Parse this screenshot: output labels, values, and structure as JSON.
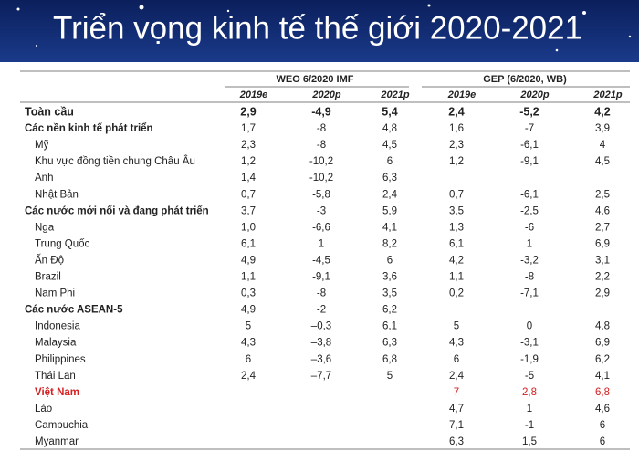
{
  "header": {
    "title": "Triển vọng kinh tế thế giới 2020-2021"
  },
  "table": {
    "groups": [
      "WEO 6/2020 IMF",
      "GEP (6/2020, WB)"
    ],
    "years": [
      "2019e",
      "2020p",
      "2021p",
      "2019e",
      "2020p",
      "2021p"
    ],
    "rows": [
      {
        "label": "Toàn cầu",
        "bold": true,
        "strong": true,
        "cells": [
          "2,9",
          "-4,9",
          "5,4",
          "2,4",
          "-5,2",
          "4,2"
        ]
      },
      {
        "label": "Các nền kinh tế phát triển",
        "bold": true,
        "cells": [
          "1,7",
          "-8",
          "4,8",
          "1,6",
          "-7",
          "3,9"
        ]
      },
      {
        "label": "Mỹ",
        "indent": true,
        "cells": [
          "2,3",
          "-8",
          "4,5",
          "2,3",
          "-6,1",
          "4"
        ]
      },
      {
        "label": "Khu vực đồng tiền chung Châu Âu",
        "indent": true,
        "cells": [
          "1,2",
          "-10,2",
          "6",
          "1,2",
          "-9,1",
          "4,5"
        ]
      },
      {
        "label": "Anh",
        "indent": true,
        "cells": [
          "1,4",
          "-10,2",
          "6,3",
          null,
          null,
          null
        ]
      },
      {
        "label": "Nhật Bản",
        "indent": true,
        "cells": [
          "0,7",
          "-5,8",
          "2,4",
          "0,7",
          "-6,1",
          "2,5"
        ]
      },
      {
        "label": "Các nước mới nổi và đang phát triển",
        "bold": true,
        "cells": [
          "3,7",
          "-3",
          "5,9",
          "3,5",
          "-2,5",
          "4,6"
        ]
      },
      {
        "label": "Nga",
        "indent": true,
        "cells": [
          "1,0",
          "-6,6",
          "4,1",
          "1,3",
          "-6",
          "2,7"
        ]
      },
      {
        "label": "Trung Quốc",
        "indent": true,
        "cells": [
          "6,1",
          "1",
          "8,2",
          "6,1",
          "1",
          "6,9"
        ]
      },
      {
        "label": "Ấn Độ",
        "indent": true,
        "cells": [
          "4,9",
          "-4,5",
          "6",
          "4,2",
          "-3,2",
          "3,1"
        ]
      },
      {
        "label": "Brazil",
        "indent": true,
        "cells": [
          "1,1",
          "-9,1",
          "3,6",
          "1,1",
          "-8",
          "2,2"
        ]
      },
      {
        "label": "Nam Phi",
        "indent": true,
        "cells": [
          "0,3",
          "-8",
          "3,5",
          "0,2",
          "-7,1",
          "2,9"
        ]
      },
      {
        "label": "Các nước ASEAN-5",
        "bold": true,
        "cells": [
          "4,9",
          "-2",
          "6,2",
          null,
          null,
          null
        ]
      },
      {
        "label": "Indonesia",
        "indent": true,
        "cells": [
          "5",
          "–0,3",
          "6,1",
          "5",
          "0",
          "4,8"
        ]
      },
      {
        "label": "Malaysia",
        "indent": true,
        "cells": [
          "4,3",
          "–3,8",
          "6,3",
          "4,3",
          "-3,1",
          "6,9"
        ]
      },
      {
        "label": "Philippines",
        "indent": true,
        "cells": [
          "6",
          "–3,6",
          "6,8",
          "6",
          "-1,9",
          "6,2"
        ]
      },
      {
        "label": "Thái Lan",
        "indent": true,
        "cells": [
          "2,4",
          "–7,7",
          "5",
          "2,4",
          "-5",
          "4,1"
        ]
      },
      {
        "label": "Việt Nam",
        "indent": true,
        "bold": true,
        "highlight": true,
        "cells": [
          null,
          null,
          null,
          "7",
          "2,8",
          "6,8"
        ]
      },
      {
        "label": "Lào",
        "indent": true,
        "cells": [
          null,
          null,
          null,
          "4,7",
          "1",
          "4,6"
        ]
      },
      {
        "label": "Campuchia",
        "indent": true,
        "cells": [
          null,
          null,
          null,
          "7,1",
          "-1",
          "6"
        ]
      },
      {
        "label": "Myanmar",
        "indent": true,
        "cells": [
          null,
          null,
          null,
          "6,3",
          "1,5",
          "6"
        ]
      }
    ]
  }
}
